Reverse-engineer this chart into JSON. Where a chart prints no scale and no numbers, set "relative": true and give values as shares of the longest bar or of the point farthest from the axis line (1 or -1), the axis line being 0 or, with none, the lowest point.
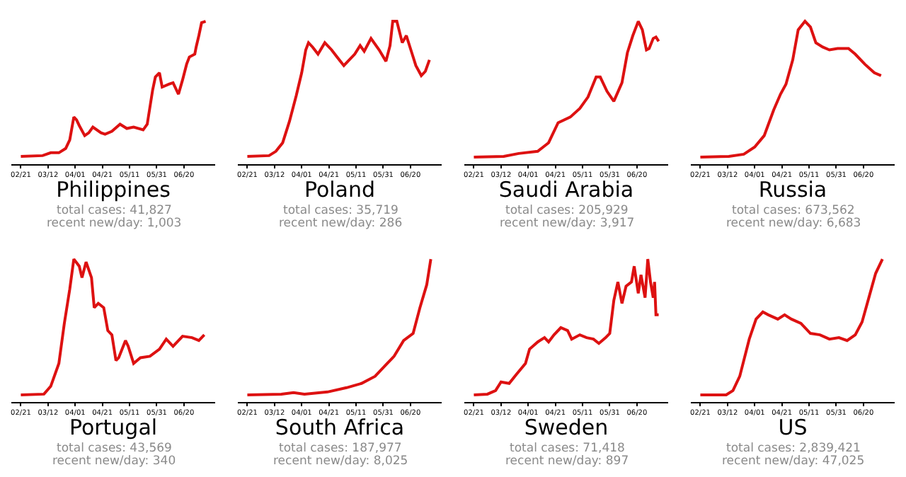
{
  "chart_data": [
    {
      "type": "line",
      "title": "Philippines",
      "annotations": [
        "total cases: 41,827",
        "recent new/day: 1,003"
      ],
      "relative": true,
      "tick_labels": "x",
      "xlim": [
        "--02-14",
        "--07-13"
      ],
      "xticks": [
        {
          "value": "--02-21",
          "label": "02/21"
        },
        {
          "value": "--03-12",
          "label": "03/12"
        },
        {
          "value": "--04-01",
          "label": "04/01"
        },
        {
          "value": "--04-21",
          "label": "04/21"
        },
        {
          "value": "--05-11",
          "label": "05/11"
        },
        {
          "value": "--05-31",
          "label": "05/31"
        },
        {
          "value": "--06-20",
          "label": "06/20"
        }
      ],
      "x": [
        "--02-21",
        "--03-08",
        "--03-14",
        "--03-20",
        "--03-25",
        "--03-28",
        "--03-31",
        "--04-02",
        "--04-04",
        "--04-08",
        "--04-11",
        "--04-14",
        "--04-20",
        "--04-23",
        "--04-28",
        "--05-04",
        "--05-09",
        "--05-14",
        "--05-21",
        "--05-24",
        "--05-28",
        "--05-30",
        "--06-02",
        "--06-04",
        "--06-09",
        "--06-12",
        "--06-16",
        "--06-19",
        "--06-22",
        "--06-24",
        "--06-28",
        "--06-29",
        "--07-01",
        "--07-03",
        "--07-06"
      ],
      "series": [
        {
          "color": "#dd1111",
          "values": [
            0.055,
            0.06,
            0.08,
            0.08,
            0.11,
            0.17,
            0.33,
            0.31,
            0.27,
            0.2,
            0.22,
            0.26,
            0.22,
            0.21,
            0.23,
            0.28,
            0.25,
            0.26,
            0.24,
            0.28,
            0.52,
            0.61,
            0.64,
            0.54,
            0.56,
            0.57,
            0.49,
            0.59,
            0.7,
            0.75,
            0.77,
            0.82,
            0.9,
            0.99,
            1.0
          ]
        }
      ]
    },
    {
      "type": "line",
      "title": "Poland",
      "annotations": [
        "total cases: 35,719",
        "recent new/day: 286"
      ],
      "relative": true,
      "tick_labels": "x",
      "xlim": [
        "--02-14",
        "--07-13"
      ],
      "xticks": [
        {
          "value": "--02-21",
          "label": "02/21"
        },
        {
          "value": "--03-12",
          "label": "03/12"
        },
        {
          "value": "--04-01",
          "label": "04/01"
        },
        {
          "value": "--04-21",
          "label": "04/21"
        },
        {
          "value": "--05-11",
          "label": "05/11"
        },
        {
          "value": "--05-31",
          "label": "05/31"
        },
        {
          "value": "--06-20",
          "label": "06/20"
        }
      ],
      "x": [
        "--02-21",
        "--03-08",
        "--03-13",
        "--03-18",
        "--03-23",
        "--03-28",
        "--04-01",
        "--04-04",
        "--04-06",
        "--04-09",
        "--04-13",
        "--04-18",
        "--04-23",
        "--04-27",
        "--05-02",
        "--05-05",
        "--05-10",
        "--05-14",
        "--05-17",
        "--05-22",
        "--05-28",
        "--06-02",
        "--06-05",
        "--06-07",
        "--06-10",
        "--06-14",
        "--06-17",
        "--06-21",
        "--06-24",
        "--06-28",
        "--07-01",
        "--07-04"
      ],
      "series": [
        {
          "color": "#dd1111",
          "values": [
            0.055,
            0.06,
            0.09,
            0.15,
            0.3,
            0.48,
            0.64,
            0.8,
            0.85,
            0.82,
            0.77,
            0.85,
            0.8,
            0.75,
            0.69,
            0.72,
            0.77,
            0.83,
            0.79,
            0.88,
            0.8,
            0.72,
            0.83,
            1.0,
            1.0,
            0.85,
            0.9,
            0.78,
            0.69,
            0.62,
            0.65,
            0.73
          ]
        }
      ]
    },
    {
      "type": "line",
      "title": "Saudi Arabia",
      "annotations": [
        "total cases: 205,929",
        "recent new/day: 3,917"
      ],
      "relative": true,
      "tick_labels": "x",
      "xlim": [
        "--02-14",
        "--07-13"
      ],
      "xticks": [
        {
          "value": "--02-21",
          "label": "02/21"
        },
        {
          "value": "--03-12",
          "label": "03/12"
        },
        {
          "value": "--04-01",
          "label": "04/01"
        },
        {
          "value": "--04-21",
          "label": "04/21"
        },
        {
          "value": "--05-11",
          "label": "05/11"
        },
        {
          "value": "--05-31",
          "label": "05/31"
        },
        {
          "value": "--06-20",
          "label": "06/20"
        }
      ],
      "x": [
        "--02-21",
        "--03-14",
        "--03-25",
        "--04-08",
        "--04-16",
        "--04-23",
        "--05-02",
        "--05-09",
        "--05-15",
        "--05-21",
        "--05-24",
        "--05-29",
        "--06-03",
        "--06-09",
        "--06-13",
        "--06-17",
        "--06-21",
        "--06-24",
        "--06-27",
        "--06-29",
        "--07-02",
        "--07-04",
        "--07-06"
      ],
      "series": [
        {
          "color": "#dd1111",
          "values": [
            0.05,
            0.055,
            0.075,
            0.09,
            0.15,
            0.29,
            0.33,
            0.39,
            0.47,
            0.61,
            0.61,
            0.51,
            0.44,
            0.57,
            0.78,
            0.9,
            1.0,
            0.94,
            0.8,
            0.81,
            0.88,
            0.89,
            0.86
          ]
        }
      ]
    },
    {
      "type": "line",
      "title": "Russia",
      "annotations": [
        "total cases: 673,562",
        "recent new/day: 6,683"
      ],
      "relative": true,
      "tick_labels": "x",
      "xlim": [
        "--02-14",
        "--07-13"
      ],
      "xticks": [
        {
          "value": "--02-21",
          "label": "02/21"
        },
        {
          "value": "--03-12",
          "label": "03/12"
        },
        {
          "value": "--04-01",
          "label": "04/01"
        },
        {
          "value": "--04-21",
          "label": "04/21"
        },
        {
          "value": "--05-11",
          "label": "05/11"
        },
        {
          "value": "--05-31",
          "label": "05/31"
        },
        {
          "value": "--06-20",
          "label": "06/20"
        }
      ],
      "x": [
        "--02-21",
        "--03-13",
        "--03-24",
        "--04-01",
        "--04-08",
        "--04-15",
        "--04-20",
        "--04-24",
        "--04-29",
        "--05-03",
        "--05-08",
        "--05-12",
        "--05-16",
        "--05-21",
        "--05-26",
        "--06-01",
        "--06-09",
        "--06-14",
        "--06-21",
        "--06-28",
        "--07-03"
      ],
      "series": [
        {
          "color": "#dd1111",
          "values": [
            0.05,
            0.055,
            0.07,
            0.12,
            0.2,
            0.38,
            0.49,
            0.56,
            0.73,
            0.94,
            1.0,
            0.96,
            0.85,
            0.82,
            0.8,
            0.81,
            0.81,
            0.77,
            0.7,
            0.64,
            0.62
          ]
        }
      ]
    },
    {
      "type": "line",
      "title": "Portugal",
      "annotations": [
        "total cases: 43,569",
        "recent new/day: 340"
      ],
      "relative": true,
      "tick_labels": "x",
      "xlim": [
        "--02-14",
        "--07-13"
      ],
      "xticks": [
        {
          "value": "--02-21",
          "label": "02/21"
        },
        {
          "value": "--03-12",
          "label": "03/12"
        },
        {
          "value": "--04-01",
          "label": "04/01"
        },
        {
          "value": "--04-21",
          "label": "04/21"
        },
        {
          "value": "--05-11",
          "label": "05/11"
        },
        {
          "value": "--05-31",
          "label": "05/31"
        },
        {
          "value": "--06-20",
          "label": "06/20"
        }
      ],
      "x": [
        "--02-21",
        "--03-09",
        "--03-14",
        "--03-20",
        "--03-24",
        "--03-28",
        "--03-31",
        "--04-04",
        "--04-06",
        "--04-09",
        "--04-13",
        "--04-15",
        "--04-18",
        "--04-22",
        "--04-25",
        "--04-28",
        "--05-01",
        "--05-03",
        "--05-08",
        "--05-10",
        "--05-14",
        "--05-19",
        "--05-26",
        "--06-02",
        "--06-07",
        "--06-12",
        "--06-19",
        "--06-26",
        "--07-01",
        "--07-05"
      ],
      "series": [
        {
          "color": "#dd1111",
          "values": [
            0.05,
            0.055,
            0.11,
            0.27,
            0.55,
            0.79,
            1.0,
            0.95,
            0.87,
            0.98,
            0.87,
            0.66,
            0.69,
            0.66,
            0.5,
            0.47,
            0.29,
            0.31,
            0.43,
            0.39,
            0.27,
            0.31,
            0.32,
            0.37,
            0.44,
            0.39,
            0.46,
            0.45,
            0.43,
            0.47
          ]
        }
      ]
    },
    {
      "type": "line",
      "title": "South Africa",
      "annotations": [
        "total cases: 187,977",
        "recent new/day: 8,025"
      ],
      "relative": true,
      "tick_labels": "x",
      "xlim": [
        "--02-14",
        "--07-13"
      ],
      "xticks": [
        {
          "value": "--02-21",
          "label": "02/21"
        },
        {
          "value": "--03-12",
          "label": "03/12"
        },
        {
          "value": "--04-01",
          "label": "04/01"
        },
        {
          "value": "--04-21",
          "label": "04/21"
        },
        {
          "value": "--05-11",
          "label": "05/11"
        },
        {
          "value": "--05-31",
          "label": "05/31"
        },
        {
          "value": "--06-20",
          "label": "06/20"
        }
      ],
      "x": [
        "--02-21",
        "--03-17",
        "--03-26",
        "--04-03",
        "--04-20",
        "--05-04",
        "--05-15",
        "--05-25",
        "--06-03",
        "--06-08",
        "--06-15",
        "--06-22",
        "--06-27",
        "--07-02",
        "--07-05"
      ],
      "series": [
        {
          "color": "#dd1111",
          "values": [
            0.05,
            0.055,
            0.065,
            0.055,
            0.07,
            0.1,
            0.13,
            0.18,
            0.27,
            0.32,
            0.43,
            0.48,
            0.66,
            0.82,
            1.0
          ]
        }
      ]
    },
    {
      "type": "line",
      "title": "Sweden",
      "annotations": [
        "total cases: 71,418",
        "recent new/day: 897"
      ],
      "relative": true,
      "tick_labels": "x",
      "xlim": [
        "--02-14",
        "--07-13"
      ],
      "xticks": [
        {
          "value": "--02-21",
          "label": "02/21"
        },
        {
          "value": "--03-12",
          "label": "03/12"
        },
        {
          "value": "--04-01",
          "label": "04/01"
        },
        {
          "value": "--04-21",
          "label": "04/21"
        },
        {
          "value": "--05-11",
          "label": "05/11"
        },
        {
          "value": "--05-31",
          "label": "05/31"
        },
        {
          "value": "--06-20",
          "label": "06/20"
        }
      ],
      "x": [
        "--02-21",
        "--03-02",
        "--03-08",
        "--03-12",
        "--03-18",
        "--03-23",
        "--03-30",
        "--04-02",
        "--04-08",
        "--04-13",
        "--04-16",
        "--04-20",
        "--04-25",
        "--04-30",
        "--05-03",
        "--05-09",
        "--05-14",
        "--05-19",
        "--05-23",
        "--05-28",
        "--05-31",
        "--06-03",
        "--06-06",
        "--06-09",
        "--06-12",
        "--06-16",
        "--06-18",
        "--06-21",
        "--06-23",
        "--06-26",
        "--06-28",
        "--06-30",
        "--07-02",
        "--07-03",
        "--07-04",
        "--07-06"
      ],
      "series": [
        {
          "color": "#dd1111",
          "values": [
            0.05,
            0.055,
            0.08,
            0.14,
            0.13,
            0.19,
            0.27,
            0.37,
            0.42,
            0.45,
            0.42,
            0.47,
            0.52,
            0.5,
            0.44,
            0.47,
            0.45,
            0.44,
            0.41,
            0.45,
            0.48,
            0.71,
            0.84,
            0.69,
            0.81,
            0.84,
            0.95,
            0.76,
            0.89,
            0.73,
            1.0,
            0.84,
            0.73,
            0.84,
            0.61,
            0.61
          ]
        }
      ]
    },
    {
      "type": "line",
      "title": "US",
      "annotations": [
        "total cases: 2,839,421",
        "recent new/day: 47,025"
      ],
      "relative": true,
      "tick_labels": "x",
      "xlim": [
        "--02-14",
        "--07-13"
      ],
      "xticks": [
        {
          "value": "--02-21",
          "label": "02/21"
        },
        {
          "value": "--03-12",
          "label": "03/12"
        },
        {
          "value": "--04-01",
          "label": "04/01"
        },
        {
          "value": "--04-21",
          "label": "04/21"
        },
        {
          "value": "--05-11",
          "label": "05/11"
        },
        {
          "value": "--05-31",
          "label": "05/31"
        },
        {
          "value": "--06-20",
          "label": "06/20"
        }
      ],
      "x": [
        "--02-21",
        "--03-11",
        "--03-16",
        "--03-21",
        "--03-28",
        "--04-02",
        "--04-07",
        "--04-11",
        "--04-18",
        "--04-23",
        "--04-28",
        "--05-05",
        "--05-12",
        "--05-19",
        "--05-26",
        "--06-02",
        "--06-08",
        "--06-14",
        "--06-19",
        "--06-24",
        "--06-29",
        "--07-04"
      ],
      "series": [
        {
          "color": "#dd1111",
          "values": [
            0.05,
            0.05,
            0.08,
            0.18,
            0.44,
            0.58,
            0.63,
            0.61,
            0.58,
            0.61,
            0.58,
            0.55,
            0.48,
            0.47,
            0.44,
            0.45,
            0.43,
            0.47,
            0.56,
            0.73,
            0.9,
            1.0
          ]
        }
      ]
    }
  ]
}
